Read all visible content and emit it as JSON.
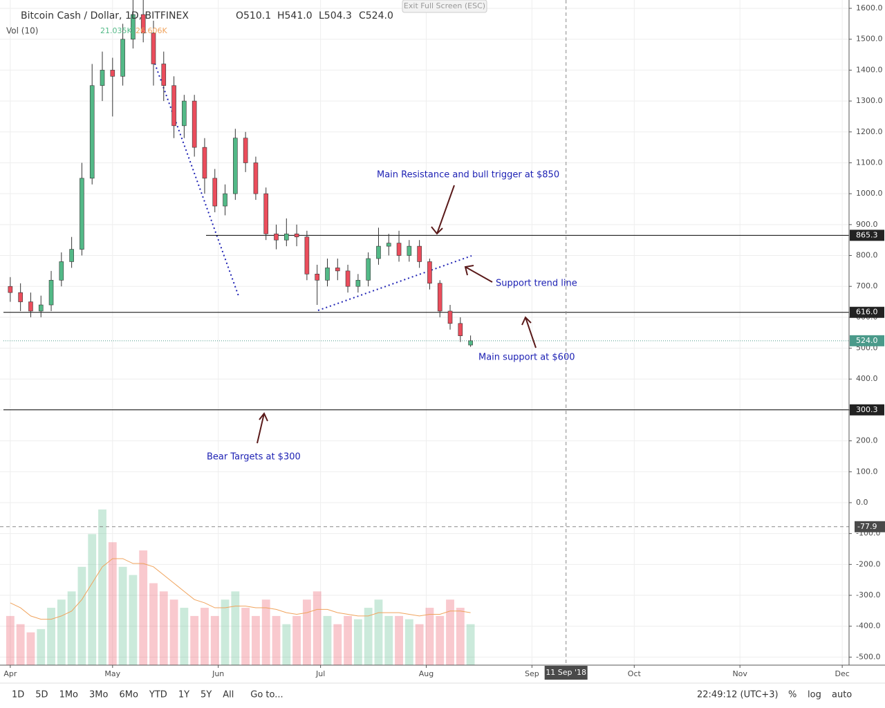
{
  "chart_data": {
    "type": "candlestick",
    "symbol": "Bitcoin Cash / Dollar, 1D, BITFINEX",
    "ohlc_labels": [
      "O510.1",
      "H541.0",
      "L504.3",
      "C524.0"
    ],
    "volume_label": "Vol (10)",
    "volume_values_labels": [
      "21.035K",
      "26.606K"
    ],
    "exit_label": "Exit Full Screen (ESC)",
    "crosshair_date": "11 Sep '18",
    "crosshair_x": 163,
    "crosshair_y": -77.9,
    "x": [
      0,
      3,
      6,
      9,
      12,
      15,
      18,
      21,
      24,
      27,
      30,
      33,
      36,
      39,
      42,
      45,
      48,
      51,
      54,
      57,
      60,
      63,
      66,
      69,
      72,
      75,
      78,
      81,
      84,
      87,
      90,
      93,
      96,
      99,
      102,
      105,
      108,
      111,
      114,
      117,
      120,
      123,
      126,
      129,
      132,
      135
    ],
    "ohlc": [
      [
        700,
        730,
        650,
        680
      ],
      [
        680,
        710,
        620,
        650
      ],
      [
        650,
        680,
        600,
        620
      ],
      [
        620,
        670,
        600,
        640
      ],
      [
        640,
        750,
        620,
        720
      ],
      [
        720,
        810,
        700,
        780
      ],
      [
        780,
        860,
        760,
        820
      ],
      [
        820,
        1100,
        800,
        1050
      ],
      [
        1050,
        1420,
        1030,
        1350
      ],
      [
        1350,
        1460,
        1300,
        1400
      ],
      [
        1400,
        1440,
        1250,
        1380
      ],
      [
        1380,
        1550,
        1350,
        1500
      ],
      [
        1500,
        1640,
        1470,
        1580
      ],
      [
        1580,
        1700,
        1490,
        1520
      ],
      [
        1520,
        1560,
        1350,
        1420
      ],
      [
        1420,
        1460,
        1300,
        1350
      ],
      [
        1350,
        1380,
        1180,
        1220
      ],
      [
        1220,
        1320,
        1180,
        1300
      ],
      [
        1300,
        1320,
        1120,
        1150
      ],
      [
        1150,
        1180,
        1000,
        1050
      ],
      [
        1050,
        1080,
        940,
        960
      ],
      [
        960,
        1030,
        930,
        1000
      ],
      [
        1000,
        1210,
        980,
        1180
      ],
      [
        1180,
        1200,
        1070,
        1100
      ],
      [
        1100,
        1120,
        980,
        1000
      ],
      [
        1000,
        1020,
        850,
        870
      ],
      [
        870,
        900,
        820,
        850
      ],
      [
        850,
        920,
        830,
        870
      ],
      [
        870,
        900,
        830,
        860
      ],
      [
        860,
        880,
        720,
        740
      ],
      [
        740,
        770,
        640,
        720
      ],
      [
        720,
        790,
        700,
        760
      ],
      [
        760,
        790,
        720,
        750
      ],
      [
        750,
        770,
        680,
        700
      ],
      [
        700,
        740,
        680,
        720
      ],
      [
        720,
        810,
        700,
        790
      ],
      [
        790,
        890,
        770,
        830
      ],
      [
        830,
        870,
        800,
        840
      ],
      [
        840,
        880,
        780,
        800
      ],
      [
        800,
        850,
        780,
        830
      ],
      [
        830,
        850,
        760,
        780
      ],
      [
        780,
        790,
        690,
        710
      ],
      [
        710,
        720,
        600,
        620
      ],
      [
        620,
        640,
        560,
        580
      ],
      [
        580,
        600,
        520,
        540
      ],
      [
        510.1,
        541.0,
        504.3,
        524.0
      ]
    ],
    "volume": [
      30,
      25,
      20,
      22,
      35,
      40,
      45,
      60,
      80,
      95,
      75,
      60,
      55,
      70,
      50,
      45,
      40,
      35,
      30,
      35,
      30,
      40,
      45,
      35,
      30,
      40,
      30,
      25,
      30,
      40,
      45,
      30,
      25,
      30,
      28,
      35,
      40,
      30,
      30,
      28,
      25,
      35,
      30,
      40,
      35,
      25
    ],
    "volume_ma": [
      38,
      35,
      30,
      28,
      28,
      30,
      33,
      40,
      50,
      60,
      65,
      65,
      62,
      62,
      60,
      55,
      50,
      45,
      40,
      38,
      35,
      35,
      36,
      36,
      35,
      35,
      34,
      32,
      31,
      32,
      34,
      34,
      32,
      31,
      30,
      30,
      32,
      32,
      32,
      31,
      30,
      31,
      31,
      33,
      33,
      32
    ],
    "volume_lim": [
      0,
      100
    ],
    "up_color": "#53b987",
    "down_color": "#eb4d5c",
    "ma_color": "#f0a35c",
    "xlim": [
      -2,
      246
    ],
    "xticks": [
      {
        "value": 0,
        "label": "Apr"
      },
      {
        "value": 30,
        "label": "May"
      },
      {
        "value": 61,
        "label": "Jun"
      },
      {
        "value": 91,
        "label": "Jul"
      },
      {
        "value": 122,
        "label": "Aug"
      },
      {
        "value": 153,
        "label": "Sep"
      },
      {
        "value": 183,
        "label": "Oct"
      },
      {
        "value": 214,
        "label": "Nov"
      },
      {
        "value": 244,
        "label": "Dec"
      }
    ],
    "ylim": [
      -526,
      1627
    ],
    "yticks": [
      {
        "value": 1600,
        "label": "1600.0"
      },
      {
        "value": 1500,
        "label": "1500.0"
      },
      {
        "value": 1400,
        "label": "1400.0"
      },
      {
        "value": 1300,
        "label": "1300.0"
      },
      {
        "value": 1200,
        "label": "1200.0"
      },
      {
        "value": 1100,
        "label": "1100.0"
      },
      {
        "value": 1000,
        "label": "1000.0"
      },
      {
        "value": 900,
        "label": "900.0"
      },
      {
        "value": 800,
        "label": "800.0"
      },
      {
        "value": 700,
        "label": "700.0"
      },
      {
        "value": 600,
        "label": "600.0"
      },
      {
        "value": 500,
        "label": "500.0"
      },
      {
        "value": 400,
        "label": "400.0"
      },
      {
        "value": 300,
        "label": "300.0"
      },
      {
        "value": 200,
        "label": "200.0"
      },
      {
        "value": 100,
        "label": "100.0"
      },
      {
        "value": 0,
        "label": "0.0"
      },
      {
        "value": -100,
        "label": "-100.0"
      },
      {
        "value": -200,
        "label": "-200.0"
      },
      {
        "value": -300,
        "label": "-300.0"
      },
      {
        "value": -400,
        "label": "-400.0"
      },
      {
        "value": -500,
        "label": "-500.0"
      }
    ],
    "grid": true,
    "levels": [
      {
        "value": 865.3,
        "color": "#000000"
      },
      {
        "value": {
          "value": 616,
          "label": "616.0"
        },
        "color": "#000000"
      },
      {
        "value": 300.3,
        "color": "#000000"
      },
      {
        "value": {
          "value": 524,
          "label": "524.0"
        },
        "color": "#4a9a8a"
      }
    ],
    "annotations": [
      "Main Resistance and bull trigger at $850",
      "Support trend line",
      "Main support at $600",
      "Bear Targets at $300"
    ],
    "toolbar": [
      "1D",
      "5D",
      "1Mo",
      "3Mo",
      "6Mo",
      "YTD",
      "1Y",
      "5Y",
      "All",
      "Go to..."
    ],
    "clock": "22:49:12 (UTC+3)",
    "toolbar_right": [
      "%",
      "log",
      "auto"
    ]
  }
}
